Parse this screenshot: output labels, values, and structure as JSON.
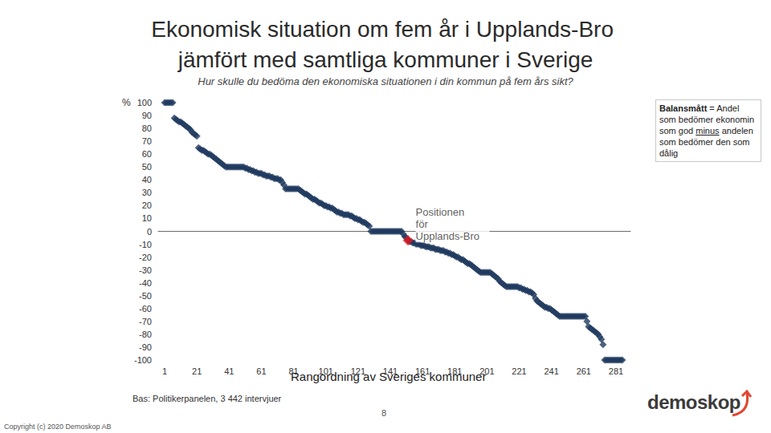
{
  "chart_data": {
    "type": "scatter",
    "title": "Ekonomisk situation om fem år i Upplands-Bro jämfört med samtliga kommuner i Sverige",
    "subtitle": "Hur skulle du bedöma den ekonomiska situationen i din kommun på fem års sikt?",
    "y_label": "%",
    "x_label": "Rangordning av Sveriges kommuner",
    "note_parts": [
      "Balansmått",
      "= Andel som bedömer ekonomin som god",
      "minus",
      "andelen som bedömer den som dålig"
    ],
    "base": "Bas: Politikerpanelen, 3 442 intervjuer",
    "page": "8",
    "copyright": "Copyright (c) 2020 Demoskop AB",
    "logo": "demoskop",
    "marker": "diamond",
    "color": "#1f3a5f",
    "grid": false,
    "x": [
      1,
      2,
      3,
      4,
      5,
      6,
      7,
      8,
      9,
      10,
      11,
      12,
      13,
      14,
      15,
      16,
      17,
      18,
      19,
      20,
      21,
      22,
      23,
      24,
      25,
      26,
      27,
      28,
      29,
      30,
      31,
      32,
      33,
      34,
      35,
      36,
      37,
      38,
      39,
      40,
      41,
      42,
      43,
      44,
      45,
      46,
      47,
      48,
      49,
      50,
      51,
      52,
      53,
      54,
      55,
      56,
      57,
      58,
      59,
      60,
      61,
      62,
      63,
      64,
      65,
      66,
      67,
      68,
      69,
      70,
      71,
      72,
      73,
      74,
      75,
      76,
      77,
      78,
      79,
      80,
      81,
      82,
      83,
      84,
      85,
      86,
      87,
      88,
      89,
      90,
      91,
      92,
      93,
      94,
      95,
      96,
      97,
      98,
      99,
      100,
      101,
      102,
      103,
      104,
      105,
      106,
      107,
      108,
      109,
      110,
      111,
      112,
      113,
      114,
      115,
      116,
      117,
      118,
      119,
      120,
      121,
      122,
      123,
      124,
      125,
      126,
      127,
      128,
      129,
      130,
      131,
      132,
      133,
      134,
      135,
      136,
      137,
      138,
      139,
      140,
      141,
      142,
      143,
      144,
      145,
      146,
      147,
      148,
      149,
      150,
      151,
      152,
      153,
      154,
      155,
      156,
      157,
      158,
      159,
      160,
      161,
      162,
      163,
      164,
      165,
      166,
      167,
      168,
      169,
      170,
      171,
      172,
      173,
      174,
      175,
      176,
      177,
      178,
      179,
      180,
      181,
      182,
      183,
      184,
      185,
      186,
      187,
      188,
      189,
      190,
      191,
      192,
      193,
      194,
      195,
      196,
      197,
      198,
      199,
      200,
      201,
      202,
      203,
      204,
      205,
      206,
      207,
      208,
      209,
      210,
      211,
      212,
      213,
      214,
      215,
      216,
      217,
      218,
      219,
      220,
      221,
      222,
      223,
      224,
      225,
      226,
      227,
      228,
      229,
      230,
      231,
      232,
      233,
      234,
      235,
      236,
      237,
      238,
      239,
      240,
      241,
      242,
      243,
      244,
      245,
      246,
      247,
      248,
      249,
      250,
      251,
      252,
      253,
      254,
      255,
      256,
      257,
      258,
      259,
      260,
      261,
      262,
      263,
      264,
      265,
      266,
      267,
      268,
      269,
      270,
      271,
      272,
      273,
      274,
      275,
      276,
      277,
      278,
      279,
      280,
      281,
      282,
      283,
      284,
      285
    ],
    "values": [
      100,
      100,
      100,
      100,
      100,
      100,
      88,
      87,
      86,
      85,
      85,
      84,
      83,
      82,
      81,
      80,
      79,
      77,
      76,
      75,
      74,
      65,
      64,
      63,
      63,
      62,
      61,
      60,
      60,
      59,
      58,
      57,
      56,
      55,
      54,
      53,
      52,
      51,
      50,
      50,
      50,
      50,
      50,
      50,
      50,
      50,
      50,
      50,
      50,
      50,
      49,
      49,
      48,
      48,
      47,
      47,
      46,
      46,
      45,
      45,
      45,
      44,
      44,
      43,
      43,
      43,
      42,
      42,
      41,
      41,
      41,
      40,
      40,
      38,
      36,
      33,
      33,
      33,
      33,
      33,
      33,
      33,
      33,
      33,
      32,
      31,
      30,
      29,
      29,
      28,
      27,
      26,
      25,
      25,
      24,
      23,
      22,
      22,
      21,
      20,
      20,
      19,
      19,
      18,
      18,
      17,
      16,
      15,
      15,
      14,
      14,
      13,
      13,
      13,
      13,
      12,
      12,
      11,
      10,
      10,
      9,
      9,
      8,
      7,
      7,
      6,
      5,
      4,
      0,
      0,
      0,
      0,
      0,
      0,
      0,
      0,
      0,
      0,
      0,
      0,
      0,
      0,
      0,
      0,
      0,
      0,
      0,
      0,
      -2,
      -4,
      -5,
      -7,
      -8,
      -8,
      -9,
      -9,
      -10,
      -10,
      -10,
      -11,
      -11,
      -11,
      -12,
      -12,
      -12,
      -13,
      -13,
      -13,
      -14,
      -14,
      -14,
      -15,
      -15,
      -15,
      -16,
      -16,
      -17,
      -17,
      -18,
      -18,
      -19,
      -20,
      -20,
      -21,
      -22,
      -22,
      -23,
      -24,
      -25,
      -25,
      -26,
      -27,
      -28,
      -29,
      -30,
      -31,
      -32,
      -32,
      -32,
      -32,
      -32,
      -32,
      -32,
      -33,
      -34,
      -35,
      -36,
      -37,
      -39,
      -40,
      -41,
      -42,
      -43,
      -43,
      -43,
      -43,
      -43,
      -43,
      -43,
      -43,
      -44,
      -44,
      -45,
      -45,
      -46,
      -46,
      -47,
      -47,
      -48,
      -49,
      -52,
      -54,
      -55,
      -56,
      -57,
      -58,
      -59,
      -59,
      -60,
      -60,
      -61,
      -62,
      -63,
      -64,
      -65,
      -66,
      -66,
      -66,
      -66,
      -66,
      -66,
      -66,
      -66,
      -66,
      -66,
      -66,
      -66,
      -66,
      -66,
      -66,
      -66,
      -66,
      -70,
      -74,
      -75,
      -76,
      -77,
      -78,
      -79,
      -80,
      -82,
      -84,
      -88,
      -100,
      -100,
      -100,
      -100,
      -100,
      -100,
      -100,
      -100,
      -100,
      -100,
      -100,
      -100
    ],
    "highlight": {
      "label": "Positionen för Upplands-Bro",
      "x": 152,
      "value": -7,
      "color": "#e8141b",
      "marker": "diamond"
    },
    "xlim": [
      -3,
      290
    ],
    "xticks": [
      1,
      21,
      41,
      61,
      81,
      101,
      121,
      141,
      161,
      181,
      201,
      221,
      241,
      261,
      281
    ],
    "ylim": [
      -100,
      100
    ],
    "yticks": [
      -100,
      -90,
      -80,
      -70,
      -60,
      -50,
      -40,
      -30,
      -20,
      -10,
      0,
      10,
      20,
      30,
      40,
      50,
      60,
      70,
      80,
      90,
      100
    ]
  }
}
